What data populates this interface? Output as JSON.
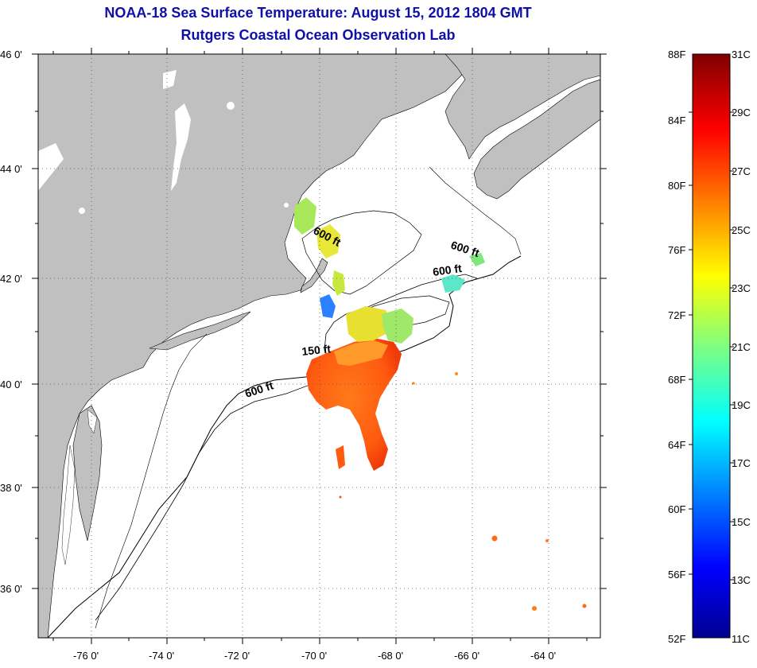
{
  "title_line1": "NOAA-18 Sea Surface Temperature:  August 15, 2012 1804 GMT",
  "title_line2": "Rutgers Coastal Ocean Observation Lab",
  "lat_labels": [
    "46 0'",
    "44 0'",
    "42 0'",
    "40 0'",
    "38 0'",
    "36 0'"
  ],
  "lon_labels": [
    "-76 0'",
    "-74 0'",
    "-72 0'",
    "-70 0'",
    "-68 0'",
    "-66 0'",
    "-64 0'"
  ],
  "contour_labels": [
    "600 ft",
    "600 ft",
    "600 ft",
    "150 ft",
    "600 ft"
  ],
  "colorbar": {
    "fahrenheit": [
      "88F",
      "84F",
      "80F",
      "76F",
      "72F",
      "68F",
      "64F",
      "60F",
      "56F",
      "52F"
    ],
    "celsius": [
      "31C",
      "29C",
      "27C",
      "25C",
      "23C",
      "21C",
      "19C",
      "17C",
      "15C",
      "13C",
      "11C"
    ],
    "range_c": [
      11,
      31
    ]
  },
  "colors": {
    "land": "#c0c0c0",
    "ocean": "#ffffff",
    "title": "#1010a8"
  }
}
